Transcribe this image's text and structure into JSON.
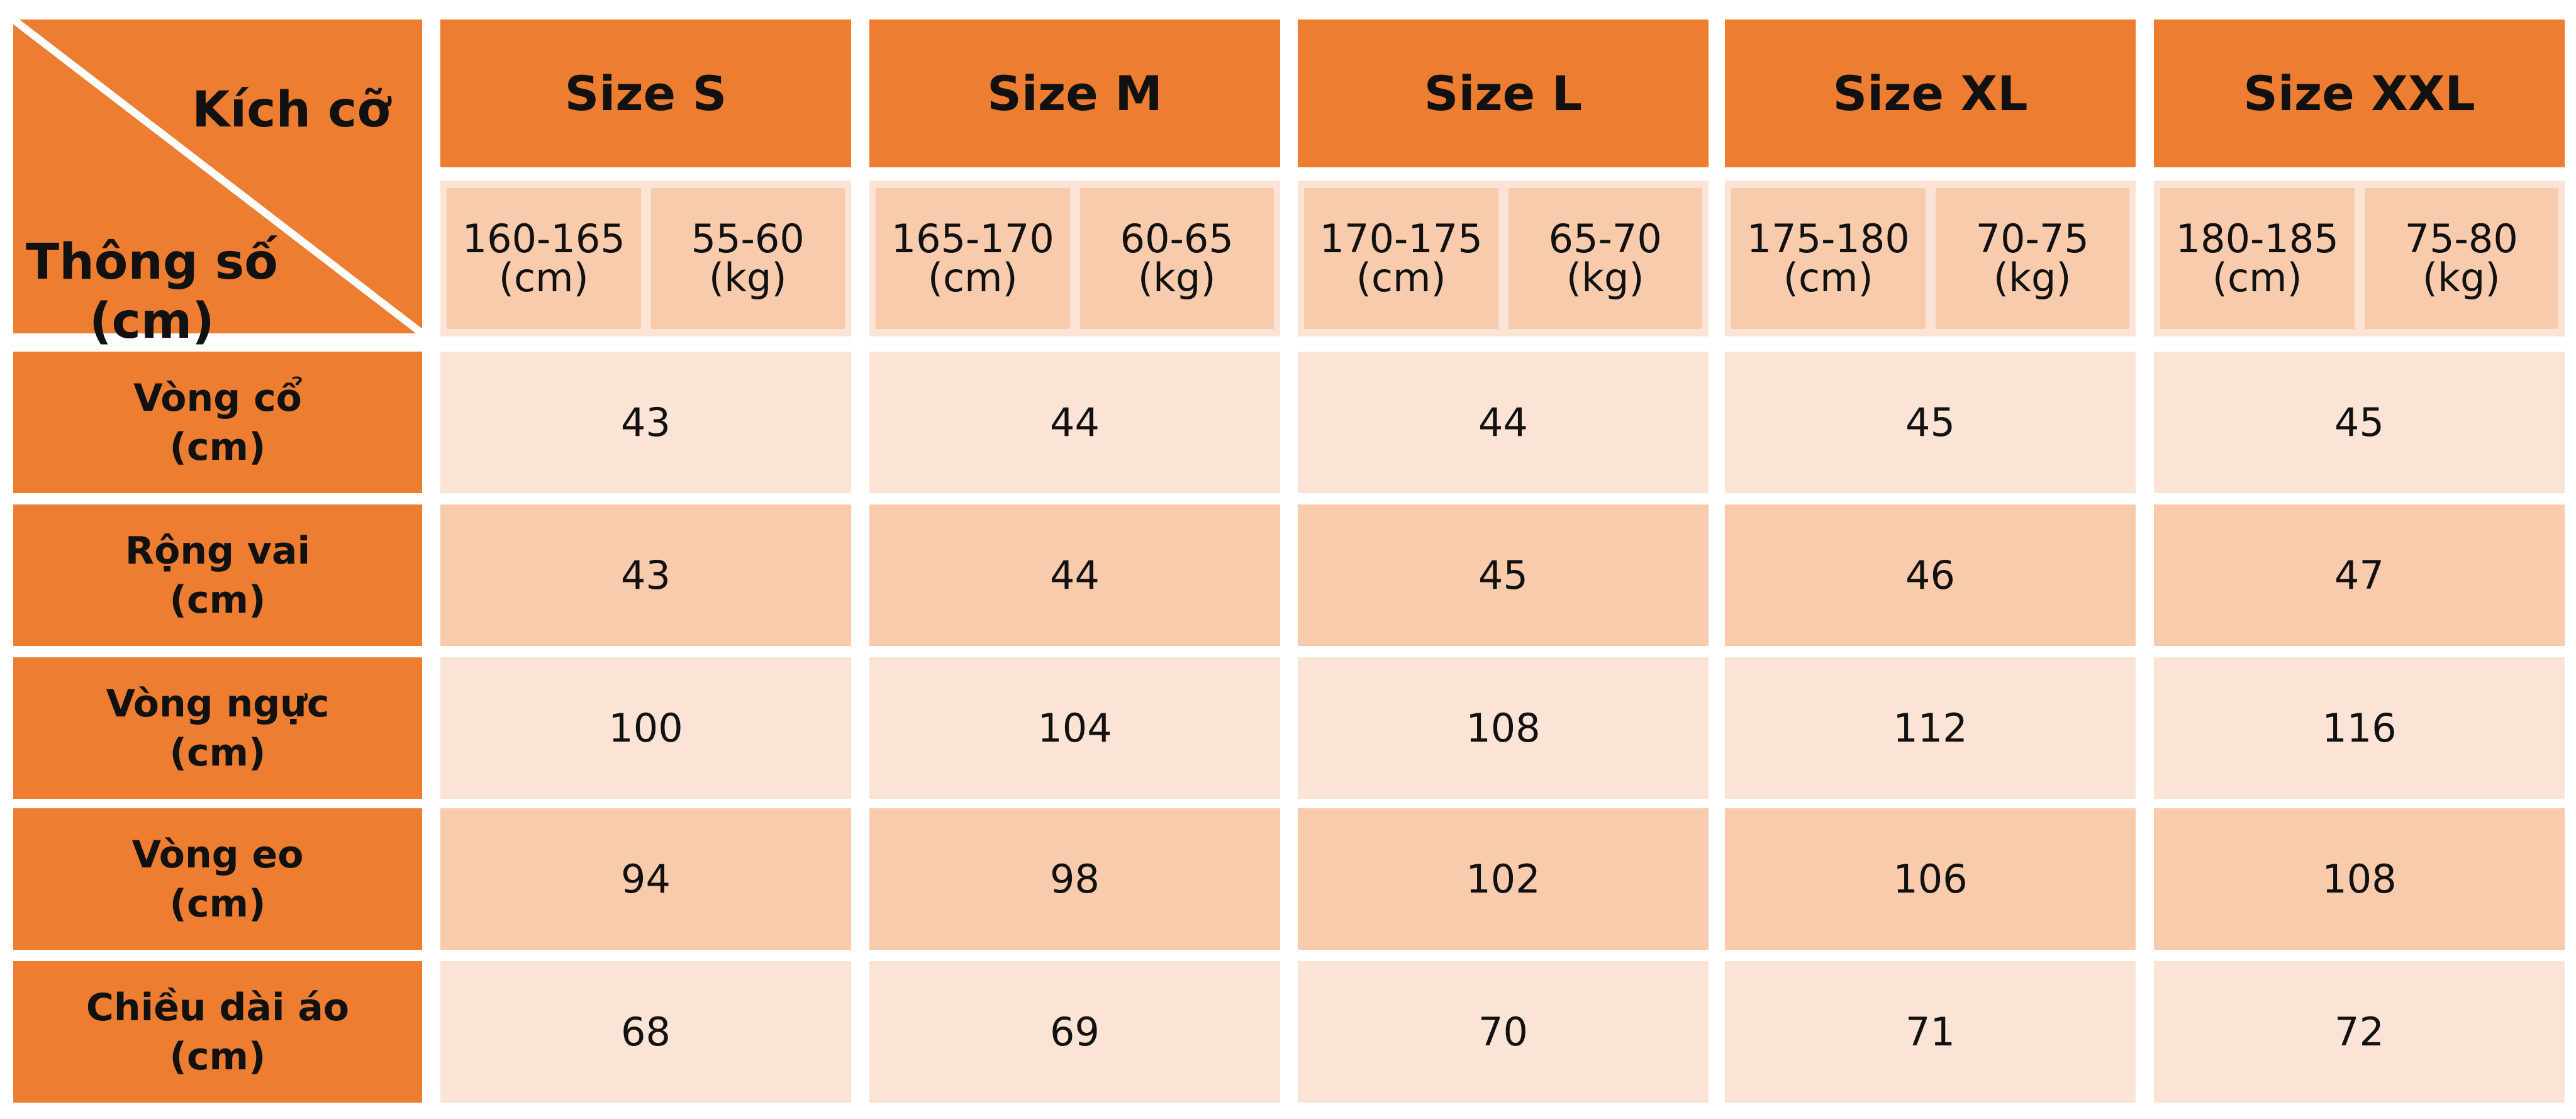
{
  "corner": {
    "top": "Kích cỡ",
    "bottom": [
      "Thông số",
      "(cm)"
    ]
  },
  "sizes": [
    {
      "name": "Size S",
      "height": [
        "160-165",
        "(cm)"
      ],
      "weight": [
        "55-60",
        "(kg)"
      ]
    },
    {
      "name": "Size M",
      "height": [
        "165-170",
        "(cm)"
      ],
      "weight": [
        "60-65",
        "(kg)"
      ]
    },
    {
      "name": "Size L",
      "height": [
        "170-175",
        "(cm)"
      ],
      "weight": [
        "65-70",
        "(kg)"
      ]
    },
    {
      "name": "Size XL",
      "height": [
        "175-180",
        "(cm)"
      ],
      "weight": [
        "70-75",
        "(kg)"
      ]
    },
    {
      "name": "Size XXL",
      "height": [
        "180-185",
        "(cm)"
      ],
      "weight": [
        "75-80",
        "(kg)"
      ]
    }
  ],
  "rows": [
    {
      "label": [
        "Vòng cổ",
        "(cm)"
      ],
      "values": [
        43,
        44,
        44,
        45,
        45
      ]
    },
    {
      "label": [
        "Rộng vai",
        "(cm)"
      ],
      "values": [
        43,
        44,
        45,
        46,
        47
      ]
    },
    {
      "label": [
        "Vòng ngực",
        "(cm)"
      ],
      "values": [
        100,
        104,
        108,
        112,
        116
      ]
    },
    {
      "label": [
        "Vòng eo",
        "(cm)"
      ],
      "values": [
        94,
        98,
        102,
        106,
        108
      ]
    },
    {
      "label": [
        "Chiều dài áo",
        "(cm)"
      ],
      "values": [
        68,
        69,
        70,
        71,
        72
      ]
    }
  ]
}
